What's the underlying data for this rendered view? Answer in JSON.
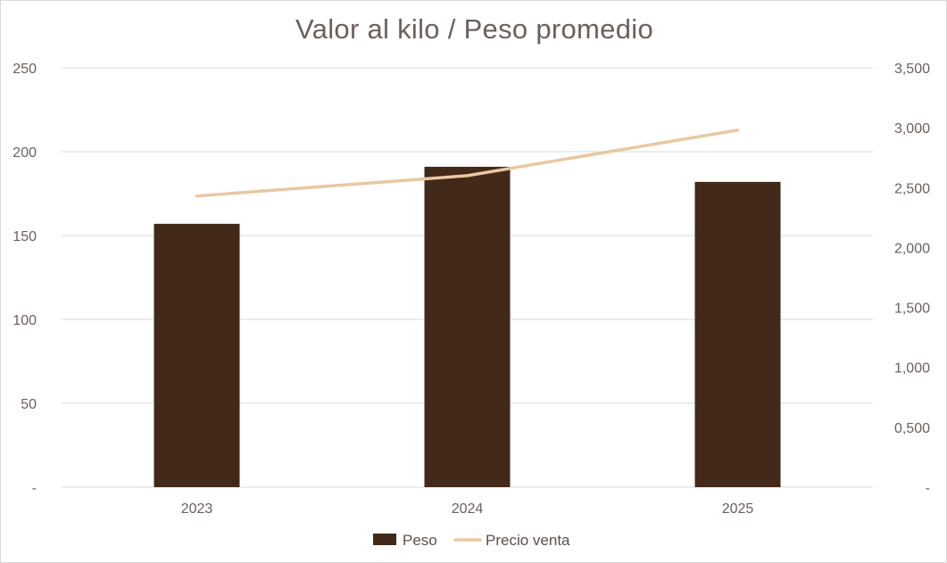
{
  "chart_data": {
    "type": "bar",
    "title": "Valor al kilo / Peso promedio",
    "categories": [
      "2023",
      "2024",
      "2025"
    ],
    "series": [
      {
        "name": "Peso",
        "type": "bar",
        "axis": "left",
        "color": "#42291a",
        "values": [
          157,
          191,
          182
        ]
      },
      {
        "name": "Precio venta",
        "type": "line",
        "axis": "right",
        "color": "#eac7a2",
        "values": [
          2.43,
          2.6,
          2.98
        ]
      }
    ],
    "y_left": {
      "ylim": [
        0,
        250
      ],
      "ticks": [
        0,
        50,
        100,
        150,
        200,
        250
      ],
      "tick_labels": [
        "-",
        "50",
        "100",
        "150",
        "200",
        "250"
      ]
    },
    "y_right": {
      "ylim": [
        0,
        3.5
      ],
      "ticks": [
        0,
        0.5,
        1.0,
        1.5,
        2.0,
        2.5,
        3.0,
        3.5
      ],
      "tick_labels": [
        "-",
        "0,500",
        "1,000",
        "1,500",
        "2,000",
        "2,500",
        "3,000",
        "3,500"
      ]
    },
    "grid": true,
    "legend_position": "bottom",
    "gridline_color": "#d9d9d9",
    "axis_text_color": "#6b605c"
  }
}
